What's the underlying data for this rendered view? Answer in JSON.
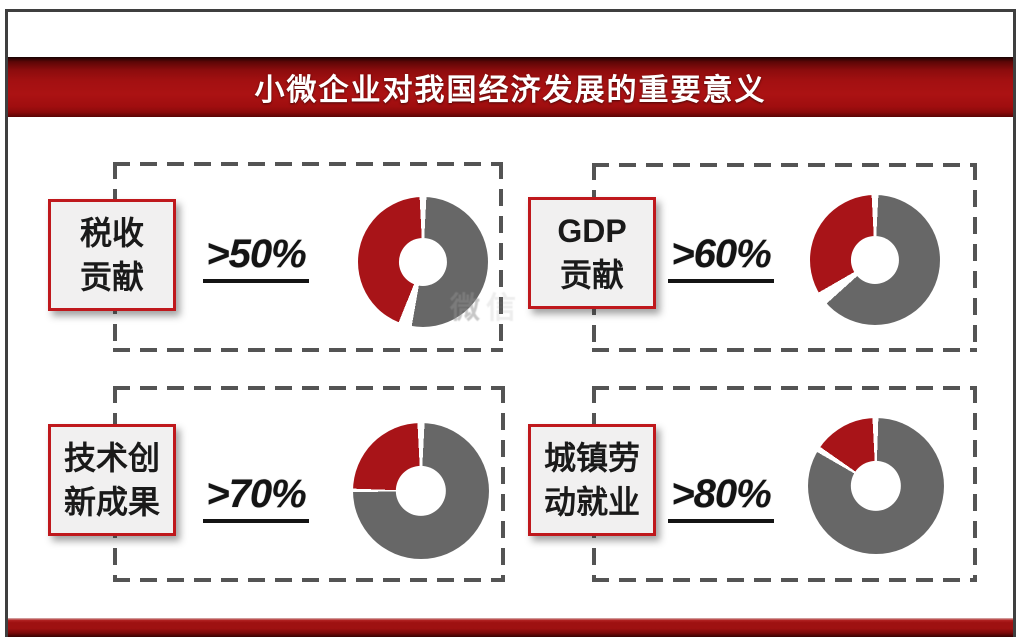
{
  "header": {
    "title": "小微企业对我国经济发展的重要意义"
  },
  "watermark": {
    "char1": "微",
    "char2": "信"
  },
  "colors": {
    "slice_red": "#a81418",
    "slice_gray": "#676767",
    "label_box_border": "#bf181c",
    "label_box_bg": "#f1f0f0",
    "dash_gray": "#545454",
    "title_bar_red": "#a31011",
    "bottom_bar_red": "#9e1111",
    "text_dark": "#141414"
  },
  "chart_data": [
    {
      "type": "pie",
      "title": "税收贡献",
      "label_lines": [
        "税收",
        "贡献"
      ],
      "value_label": ">50%",
      "value_percent_min": 50,
      "donut": true,
      "legend": "none",
      "segments": [
        {
          "name": "remainder-gray",
          "color": "#676767",
          "start_deg": 3,
          "end_deg": 190
        },
        {
          "name": "highlight-red",
          "color": "#a81418",
          "start_deg": 202,
          "end_deg": 357
        }
      ]
    },
    {
      "type": "pie",
      "title": "GDP贡献",
      "label_lines": [
        "GDP",
        "贡献"
      ],
      "value_label": ">60%",
      "value_percent_min": 60,
      "donut": true,
      "legend": "none",
      "segments": [
        {
          "name": "remainder-gray",
          "color": "#676767",
          "start_deg": 3,
          "end_deg": 228
        },
        {
          "name": "highlight-red",
          "color": "#a81418",
          "start_deg": 240,
          "end_deg": 357
        }
      ]
    },
    {
      "type": "pie",
      "title": "技术创新成果",
      "label_lines": [
        "技术创",
        "新成果"
      ],
      "value_label": ">70%",
      "value_percent_min": 70,
      "donut": true,
      "legend": "none",
      "segments": [
        {
          "name": "remainder-gray",
          "color": "#676767",
          "start_deg": 3,
          "end_deg": 269
        },
        {
          "name": "highlight-red",
          "color": "#a81418",
          "start_deg": 272,
          "end_deg": 357
        }
      ]
    },
    {
      "type": "pie",
      "title": "城镇劳动就业",
      "label_lines": [
        "城镇劳",
        "动就业"
      ],
      "value_label": ">80%",
      "value_percent_min": 80,
      "donut": true,
      "legend": "none",
      "segments": [
        {
          "name": "remainder-gray",
          "color": "#676767",
          "start_deg": 2,
          "end_deg": 300
        },
        {
          "name": "highlight-red",
          "color": "#a81418",
          "start_deg": 305,
          "end_deg": 357
        }
      ]
    }
  ]
}
